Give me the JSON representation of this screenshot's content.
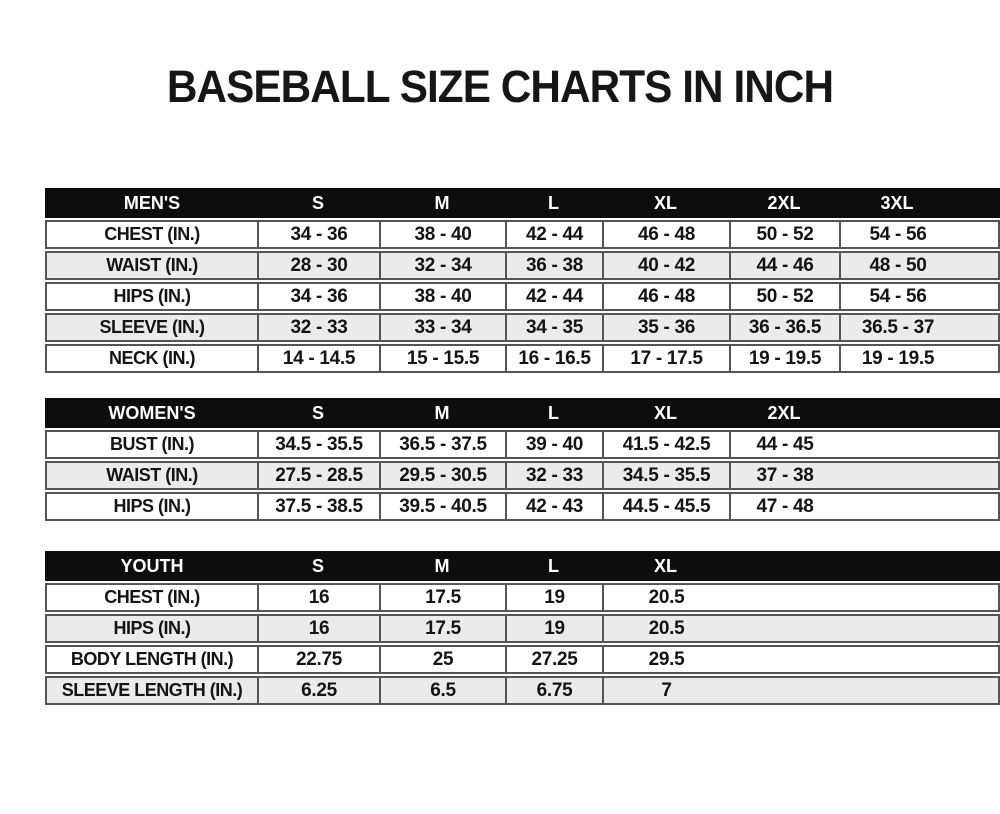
{
  "page": {
    "title": "BASEBALL SIZE CHARTS IN INCH"
  },
  "colors": {
    "header_bg": "#0d0d0d",
    "header_text": "#ffffff",
    "row_bg": "#ffffff",
    "row_alt_bg": "#ebebeb",
    "border": "#555555",
    "text": "#141414",
    "page_bg": "#ffffff"
  },
  "tables": [
    {
      "name": "mens",
      "header": "MEN'S",
      "sizes": [
        "S",
        "M",
        "L",
        "XL",
        "2XL",
        "3XL"
      ],
      "rows": [
        {
          "label": "CHEST (IN.)",
          "values": [
            "34 - 36",
            "38 - 40",
            "42 - 44",
            "46 - 48",
            "50 - 52",
            "54 - 56"
          ]
        },
        {
          "label": "WAIST (IN.)",
          "values": [
            "28 - 30",
            "32 - 34",
            "36 - 38",
            "40 - 42",
            "44 - 46",
            "48 - 50"
          ]
        },
        {
          "label": "HIPS (IN.)",
          "values": [
            "34 - 36",
            "38 - 40",
            "42 - 44",
            "46 - 48",
            "50 - 52",
            "54 - 56"
          ]
        },
        {
          "label": "SLEEVE (IN.)",
          "values": [
            "32 - 33",
            "33 - 34",
            "34 - 35",
            "35 - 36",
            "36 - 36.5",
            "36.5 - 37"
          ]
        },
        {
          "label": "NECK (IN.)",
          "values": [
            "14 - 14.5",
            "15 - 15.5",
            "16 - 16.5",
            "17 - 17.5",
            "19 - 19.5",
            "19 - 19.5"
          ]
        }
      ]
    },
    {
      "name": "womens",
      "header": "WOMEN'S",
      "sizes": [
        "S",
        "M",
        "L",
        "XL",
        "2XL"
      ],
      "rows": [
        {
          "label": "BUST (IN.)",
          "values": [
            "34.5 - 35.5",
            "36.5 - 37.5",
            "39 - 40",
            "41.5 - 42.5",
            "44 - 45"
          ]
        },
        {
          "label": "WAIST (IN.)",
          "values": [
            "27.5 - 28.5",
            "29.5 - 30.5",
            "32 - 33",
            "34.5 - 35.5",
            "37 - 38"
          ]
        },
        {
          "label": "HIPS (IN.)",
          "values": [
            "37.5 - 38.5",
            "39.5 - 40.5",
            "42 - 43",
            "44.5 - 45.5",
            "47 - 48"
          ]
        }
      ]
    },
    {
      "name": "youth",
      "header": "YOUTH",
      "sizes": [
        "S",
        "M",
        "L",
        "XL"
      ],
      "rows": [
        {
          "label": "CHEST (IN.)",
          "values": [
            "16",
            "17.5",
            "19",
            "20.5"
          ]
        },
        {
          "label": "HIPS (IN.)",
          "values": [
            "16",
            "17.5",
            "19",
            "20.5"
          ]
        },
        {
          "label": "BODY LENGTH (IN.)",
          "values": [
            "22.75",
            "25",
            "27.25",
            "29.5"
          ]
        },
        {
          "label": "SLEEVE LENGTH (IN.)",
          "values": [
            "6.25",
            "6.5",
            "6.75",
            "7"
          ]
        }
      ]
    }
  ]
}
